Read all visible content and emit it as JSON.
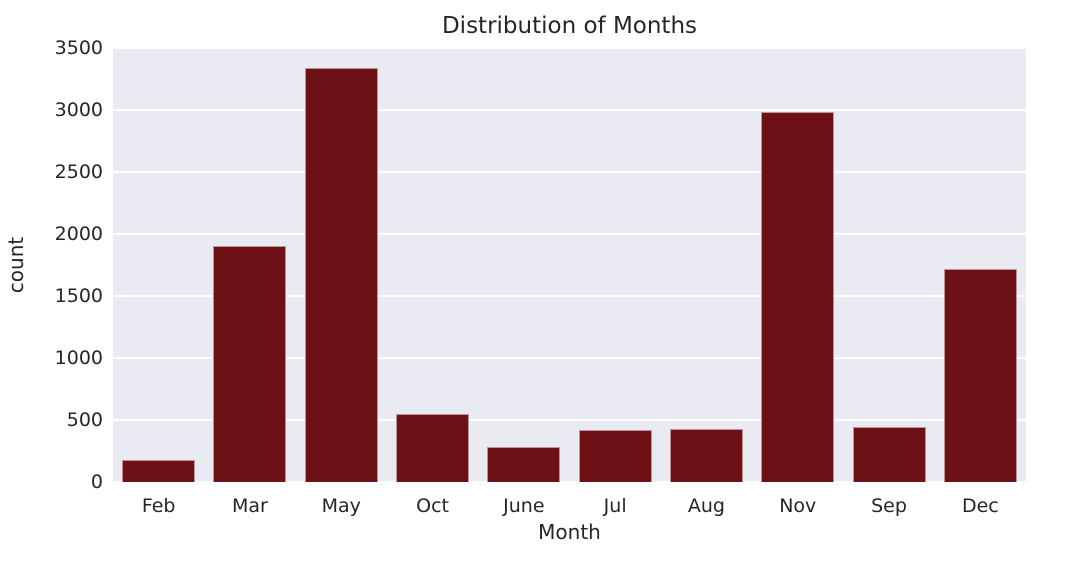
{
  "chart_data": {
    "type": "bar",
    "title": "Distribution of Months",
    "xlabel": "Month",
    "ylabel": "count",
    "categories": [
      "Feb",
      "Mar",
      "May",
      "Oct",
      "June",
      "Jul",
      "Aug",
      "Nov",
      "Sep",
      "Dec"
    ],
    "values": [
      180,
      1900,
      3340,
      545,
      280,
      420,
      430,
      2980,
      445,
      1720
    ],
    "ylim": [
      0,
      3500
    ],
    "yticks": [
      0,
      500,
      1000,
      1500,
      2000,
      2500,
      3000,
      3500
    ],
    "grid": true,
    "legend_position": "none",
    "bar_color": "#6e1116",
    "bar_edge_color": "#e3cfd1",
    "plot_background": "#eaeaf2",
    "grid_color": "#ffffff",
    "text_color": "#262626",
    "figure_background": "#ffffff"
  }
}
